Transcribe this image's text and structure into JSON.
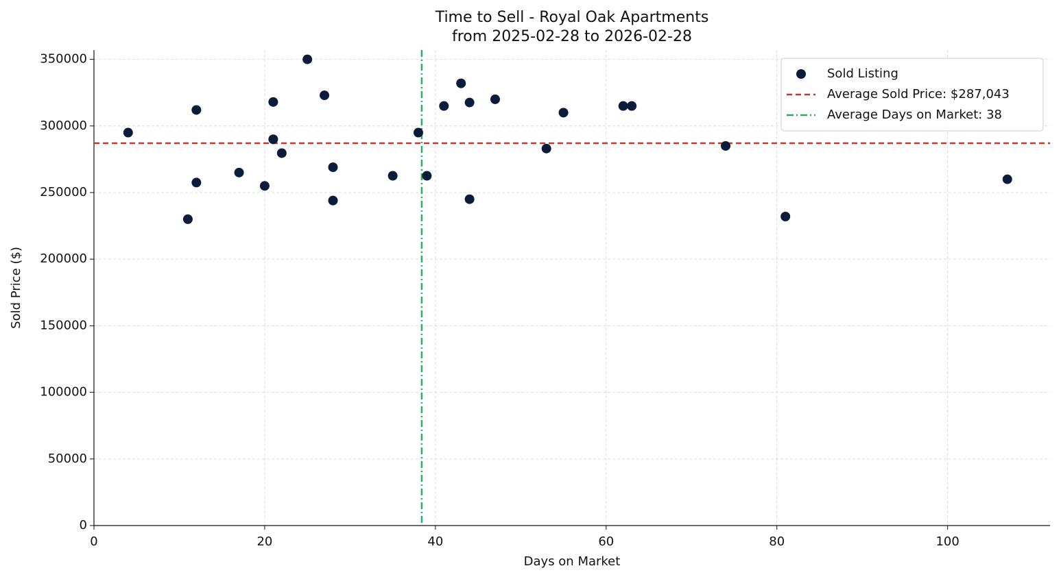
{
  "chart_data": {
    "type": "scatter",
    "title": "Time to Sell - Royal Oak Apartments",
    "subtitle": "from 2025-02-28 to 2026-02-28",
    "x_label": "Days on Market",
    "y_label": "Sold Price ($)",
    "xlim": [
      0,
      112
    ],
    "xticks": [
      0,
      20,
      40,
      60,
      80,
      100
    ],
    "ylim": [
      0,
      357000
    ],
    "yticks": [
      0,
      50000,
      100000,
      150000,
      200000,
      250000,
      300000,
      350000
    ],
    "grid": true,
    "legend": "upper right",
    "series": [
      {
        "name": "Sold Listing",
        "color": "#0a1c3a",
        "x": [
          4,
          12,
          12,
          11,
          17,
          20,
          21,
          21,
          22,
          25,
          27,
          28,
          28,
          35,
          38,
          39,
          41,
          43,
          44,
          44,
          47,
          53,
          55,
          62,
          63,
          74,
          81,
          107
        ],
        "values": [
          295000,
          312000,
          257500,
          230000,
          265000,
          255000,
          318000,
          290000,
          279600,
          350000,
          323000,
          269000,
          244000,
          262600,
          295000,
          262600,
          315000,
          332000,
          317600,
          245000,
          320000,
          283000,
          310000,
          315000,
          315000,
          285000,
          232000,
          260000
        ]
      }
    ],
    "hlines": [
      {
        "value": 287043,
        "label": "Average Sold Price: $287,043",
        "color": "#c0392b",
        "linestyle": "--"
      }
    ],
    "vlines": [
      {
        "value": 38.4,
        "label": "Average Days on Market: 38",
        "color": "#27ae60",
        "linestyle": "-."
      }
    ]
  }
}
